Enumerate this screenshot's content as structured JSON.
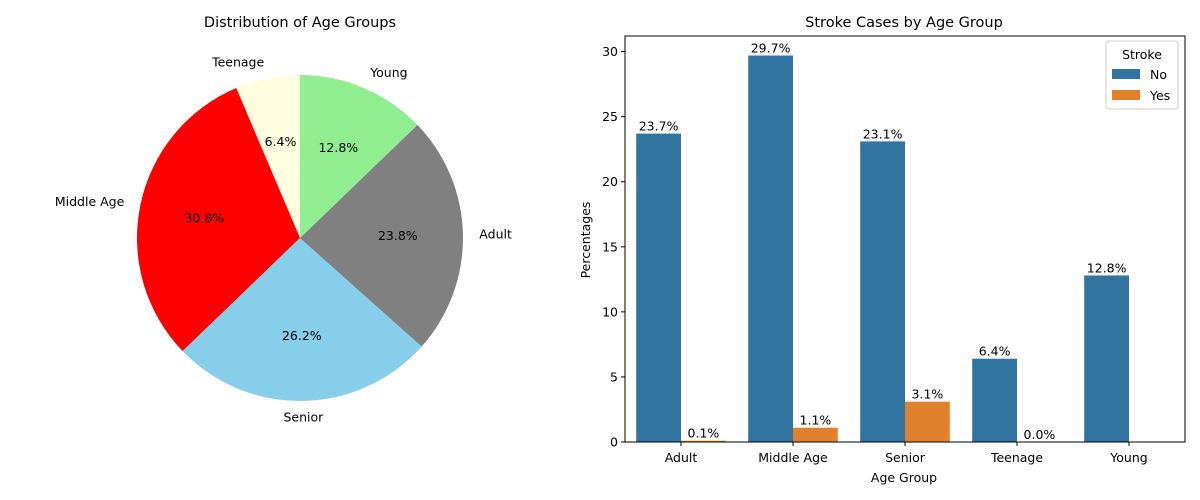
{
  "chart_data": [
    {
      "type": "pie",
      "title": "Distribution of Age Groups",
      "start_angle_deg": 90,
      "direction": "counterclockwise",
      "slices": [
        {
          "label": "Teenage",
          "value": 6.4,
          "pct_label": "6.4%",
          "color": "#fffde0"
        },
        {
          "label": "Middle Age",
          "value": 30.8,
          "pct_label": "30.8%",
          "color": "#ff0000"
        },
        {
          "label": "Senior",
          "value": 26.2,
          "pct_label": "26.2%",
          "color": "#87ceeb"
        },
        {
          "label": "Adult",
          "value": 23.8,
          "pct_label": "23.8%",
          "color": "#808080"
        },
        {
          "label": "Young",
          "value": 12.8,
          "pct_label": "12.8%",
          "color": "#90ee90"
        }
      ]
    },
    {
      "type": "bar",
      "title": "Stroke Cases by Age Group",
      "xlabel": "Age Group",
      "ylabel": "Percentages",
      "ylim": [
        0,
        31.2
      ],
      "yticks": [
        0,
        5,
        10,
        15,
        20,
        25,
        30
      ],
      "categories": [
        "Adult",
        "Middle Age",
        "Senior",
        "Teenage",
        "Young"
      ],
      "legend": {
        "title": "Stroke",
        "position": "top-right"
      },
      "series": [
        {
          "name": "No",
          "color": "#3274a1",
          "values": [
            23.7,
            29.7,
            23.1,
            6.4,
            12.8
          ],
          "labels": [
            "23.7%",
            "29.7%",
            "23.1%",
            "6.4%",
            "12.8%"
          ]
        },
        {
          "name": "Yes",
          "color": "#e1812c",
          "values": [
            0.1,
            1.1,
            3.1,
            0.0,
            null
          ],
          "labels": [
            "0.1%",
            "1.1%",
            "3.1%",
            "0.0%",
            null
          ]
        }
      ]
    }
  ]
}
